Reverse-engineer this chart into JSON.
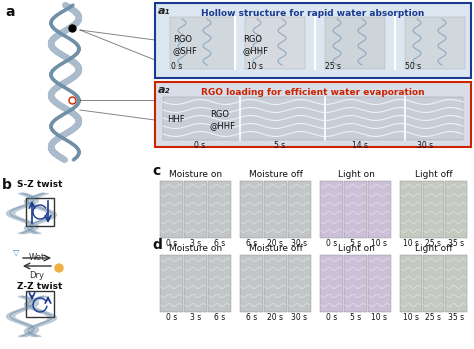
{
  "fig_width": 4.74,
  "fig_height": 3.49,
  "dpi": 100,
  "bg_color": "#ffffff",
  "panel_a_label": "a",
  "panel_b_label": "b",
  "panel_c_label": "c",
  "panel_d_label": "d",
  "a1_label": "a₁",
  "a2_label": "a₂",
  "a1_title": "Hollow structure for rapid water absorption",
  "a1_title_color": "#1a3a8f",
  "a2_title": "RGO loading for efficient water evaporation",
  "a2_title_color": "#cc2200",
  "a1_box_color": "#1a3a8f",
  "a2_box_color": "#cc2200",
  "a1_bg": "#dce6f0",
  "a2_bg": "#d8dde8",
  "a1_texts": [
    "RGO\n@SHF",
    "RGO\n@HHF"
  ],
  "a1_times": [
    "0 s",
    "10 s",
    "25 s",
    "50 s"
  ],
  "a2_texts": [
    "HHF",
    "RGO\n@HHF"
  ],
  "a2_times": [
    "0 s",
    "5 s",
    "14 s",
    "30 s"
  ],
  "sz_twist_label": "S-Z twist",
  "zz_twist_label": "Z-Z twist",
  "wet_label": "Wet",
  "dry_label": "Dry",
  "twist_arrow_color": "#1a3a8f",
  "c_labels": [
    "Moisture on",
    "Moisture off",
    "Light on",
    "Light off"
  ],
  "d_labels": [
    "Moisture on",
    "Moisture off",
    "Light on",
    "Light off"
  ],
  "c_times_groups": [
    [
      "0 s",
      "3 s",
      "6 s"
    ],
    [
      "6 s",
      "20 s",
      "30 s"
    ],
    [
      "0 s",
      "5 s",
      "10 s"
    ],
    [
      "10 s",
      "25 s",
      "35 s"
    ]
  ],
  "d_times_groups": [
    [
      "0 s",
      "3 s",
      "6 s"
    ],
    [
      "6 s",
      "20 s",
      "30 s"
    ],
    [
      "0 s",
      "5 s",
      "10 s"
    ],
    [
      "10 s",
      "25 s",
      "35 s"
    ]
  ],
  "c_group_colors": [
    "#c8c8c8",
    "#b8b8c8",
    "#c8c0d8",
    "#c8ccc0"
  ],
  "d_group_colors": [
    "#c0c0c0",
    "#b8b8b8",
    "#d0d0e0",
    "#c8c8b8"
  ],
  "fiber_color": "#aabccc",
  "fiber_twist_color": "#7090a8",
  "label_fontsize": 9,
  "small_fontsize": 6.5,
  "title_fontsize": 6.5,
  "tick_fontsize": 5.5
}
